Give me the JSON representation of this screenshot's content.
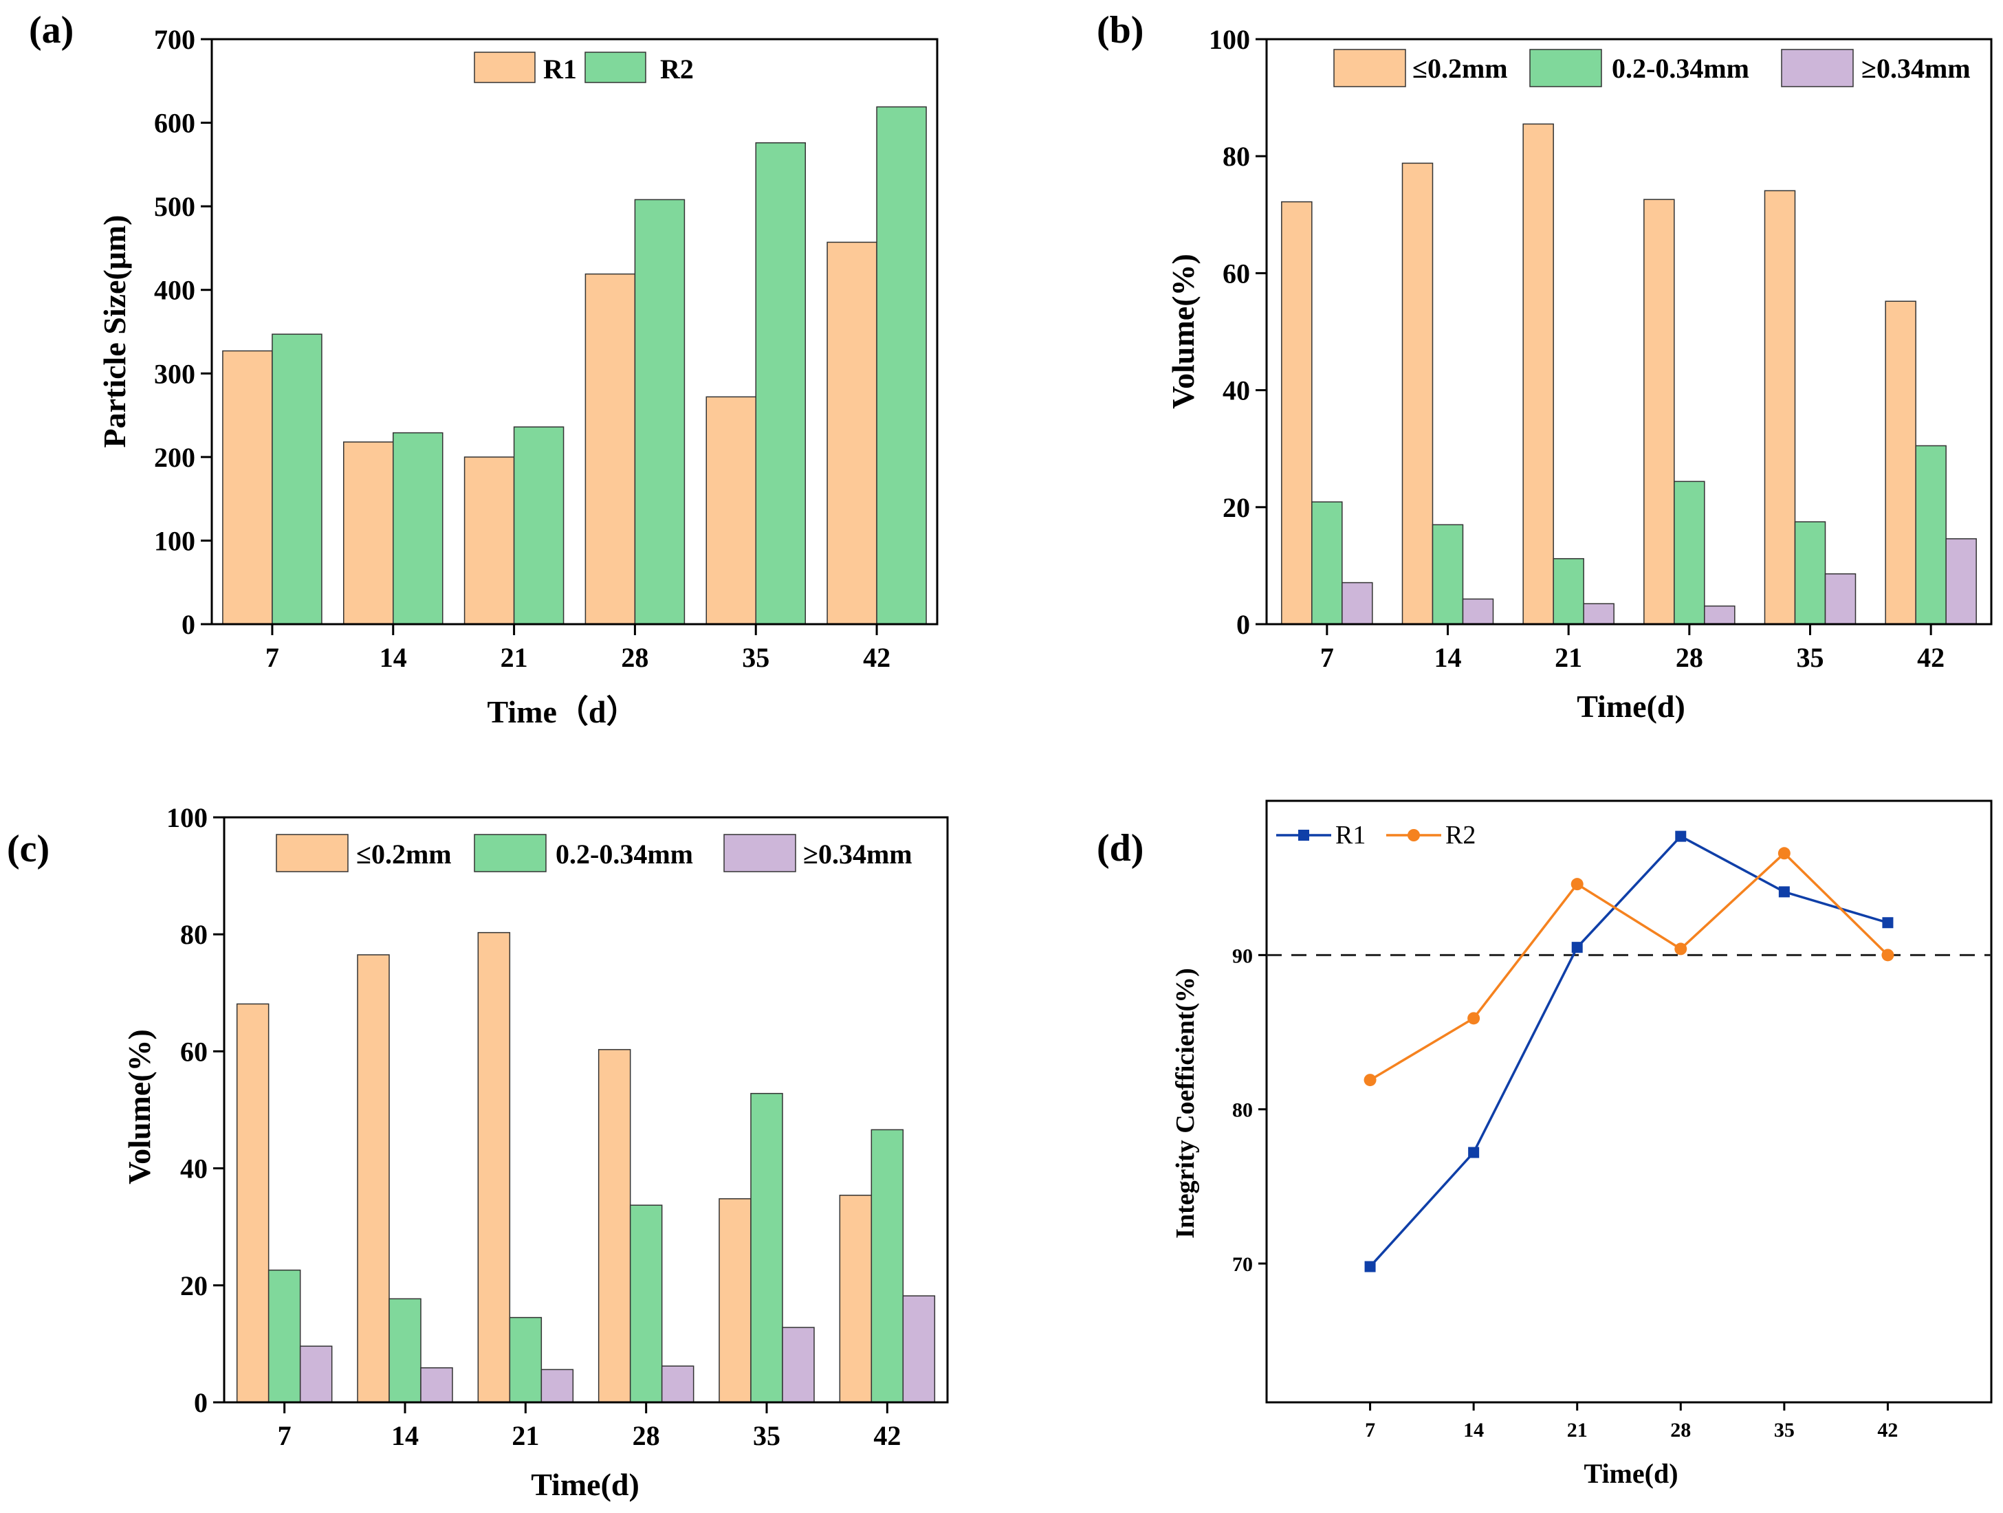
{
  "chart_data": [
    {
      "panel": "(a)",
      "type": "bar",
      "categories": [
        "7",
        "14",
        "21",
        "28",
        "35",
        "42"
      ],
      "series": [
        {
          "name": "R1",
          "values": [
            327,
            218,
            200,
            419,
            272,
            457
          ],
          "color": "#FDC997"
        },
        {
          "name": "R2",
          "values": [
            347,
            229,
            236,
            508,
            576,
            619
          ],
          "color": "#80D89B"
        }
      ],
      "xlabel": "Time（d）",
      "ylabel": "Particle Size(μm)",
      "ylim": [
        0,
        700
      ],
      "yticks": [
        "0",
        "100",
        "200",
        "300",
        "400",
        "500",
        "600",
        "700"
      ],
      "legend_position": "top-center"
    },
    {
      "panel": "(b)",
      "type": "bar",
      "categories": [
        "7",
        "14",
        "21",
        "28",
        "35",
        "42"
      ],
      "series": [
        {
          "name": "≤0.2mm",
          "values": [
            72.2,
            78.8,
            85.5,
            72.6,
            74.1,
            55.2
          ],
          "color": "#FDC997"
        },
        {
          "name": "0.2-0.34mm",
          "values": [
            20.9,
            17.0,
            11.2,
            24.4,
            17.5,
            30.5
          ],
          "color": "#80D89B"
        },
        {
          "name": "≥0.34mm",
          "values": [
            7.1,
            4.3,
            3.5,
            3.1,
            8.6,
            14.6
          ],
          "color": "#CDB6D9"
        }
      ],
      "xlabel": "Time(d)",
      "ylabel": "Volume(%)",
      "ylim": [
        0,
        100
      ],
      "yticks": [
        "0",
        "20",
        "40",
        "60",
        "80",
        "100"
      ],
      "legend_position": "top"
    },
    {
      "panel": "(c)",
      "type": "bar",
      "categories": [
        "7",
        "14",
        "21",
        "28",
        "35",
        "42"
      ],
      "series": [
        {
          "name": "≤0.2mm",
          "values": [
            68.1,
            76.5,
            80.3,
            60.3,
            34.8,
            35.4
          ],
          "color": "#FDC997"
        },
        {
          "name": "0.2-0.34mm",
          "values": [
            22.6,
            17.7,
            14.5,
            33.7,
            52.8,
            46.6
          ],
          "color": "#80D89B"
        },
        {
          "name": "≥0.34mm",
          "values": [
            9.6,
            5.9,
            5.6,
            6.2,
            12.8,
            18.2
          ],
          "color": "#CDB6D9"
        }
      ],
      "xlabel": "Time(d)",
      "ylabel": "Volume(%)",
      "ylim": [
        0,
        100
      ],
      "yticks": [
        "0",
        "20",
        "40",
        "60",
        "80",
        "100"
      ],
      "legend_position": "top"
    },
    {
      "panel": "(d)",
      "type": "line",
      "x": [
        7,
        14,
        21,
        28,
        35,
        42
      ],
      "xticks": [
        "7",
        "14",
        "21",
        "28",
        "35",
        "42"
      ],
      "series": [
        {
          "name": "R1",
          "values": [
            69.8,
            77.2,
            90.5,
            97.7,
            94.1,
            92.1
          ],
          "color": "#0F3FA8",
          "marker": "square"
        },
        {
          "name": "R2",
          "values": [
            81.9,
            85.9,
            94.6,
            90.4,
            96.6,
            90.0
          ],
          "color": "#F5821F",
          "marker": "circle"
        }
      ],
      "reference_line": {
        "y": 90,
        "style": "dashed"
      },
      "xlabel": "Time(d)",
      "ylabel": "Integrity Coefficient(%)",
      "xlim": [
        0,
        49
      ],
      "ylim": [
        61,
        100
      ],
      "yticks": [
        "70",
        "80",
        "90"
      ],
      "legend_position": "top-left"
    }
  ]
}
